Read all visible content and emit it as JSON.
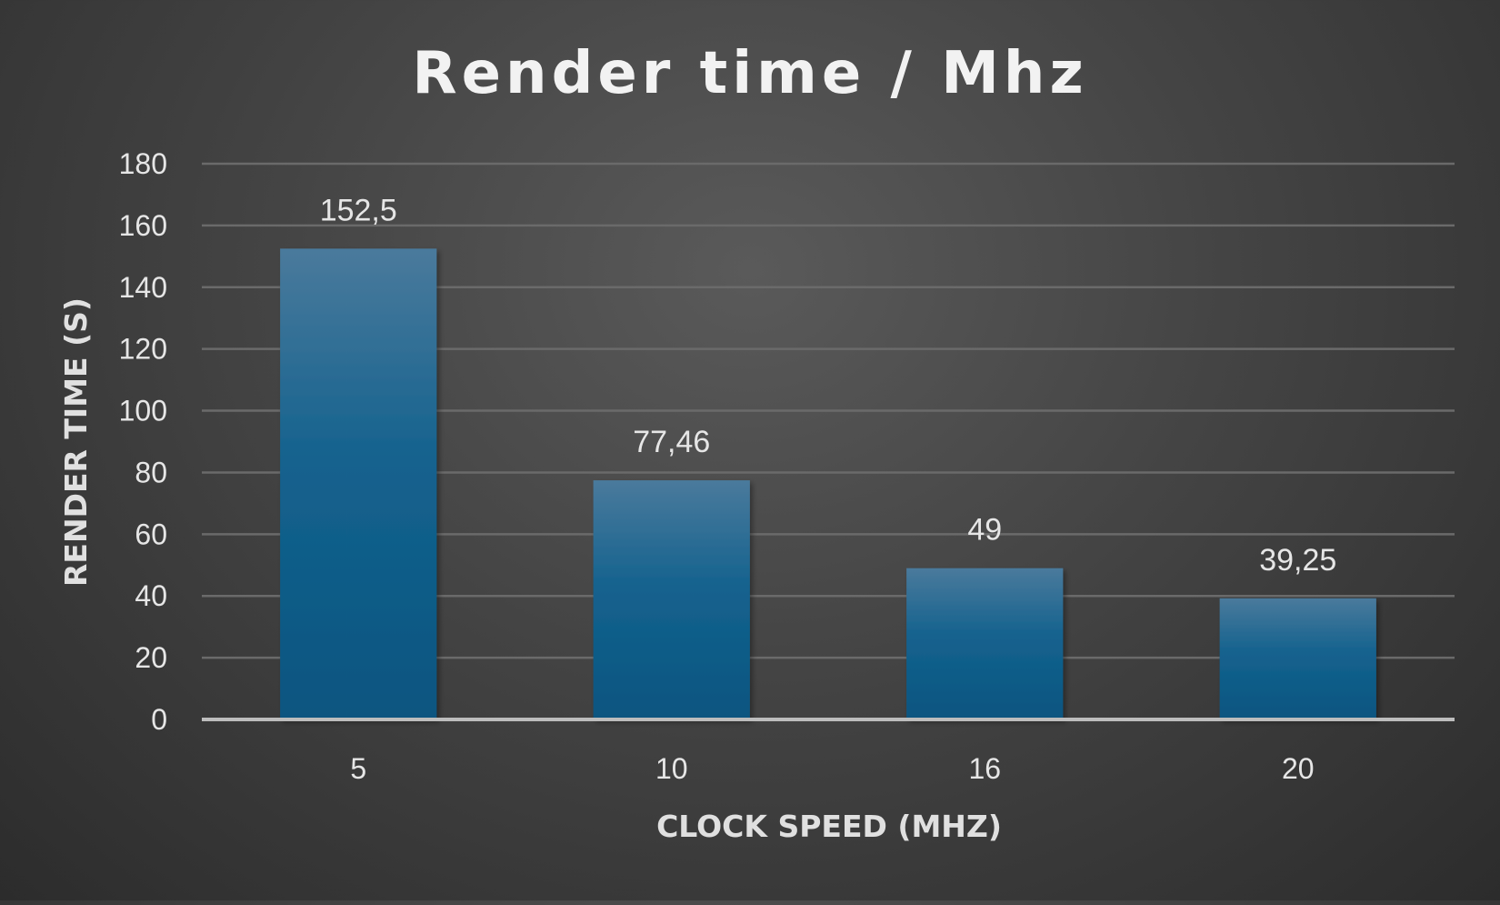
{
  "chart_data": {
    "type": "bar",
    "title": "Render time / Mhz",
    "xlabel": "CLOCK SPEED (MHZ)",
    "ylabel": "RENDER TIME (S)",
    "categories": [
      "5",
      "10",
      "16",
      "20"
    ],
    "values": [
      152.5,
      77.46,
      49,
      39.25
    ],
    "value_labels": [
      "152,5",
      "77,46",
      "49",
      "39,25"
    ],
    "ylim": [
      0,
      180
    ],
    "yticks": [
      0,
      20,
      40,
      60,
      80,
      100,
      120,
      140,
      160,
      180
    ],
    "grid": true,
    "legend": "none",
    "colors": {
      "bar_top": "#4a7a9c",
      "bar_bottom": "#0a5580"
    }
  }
}
